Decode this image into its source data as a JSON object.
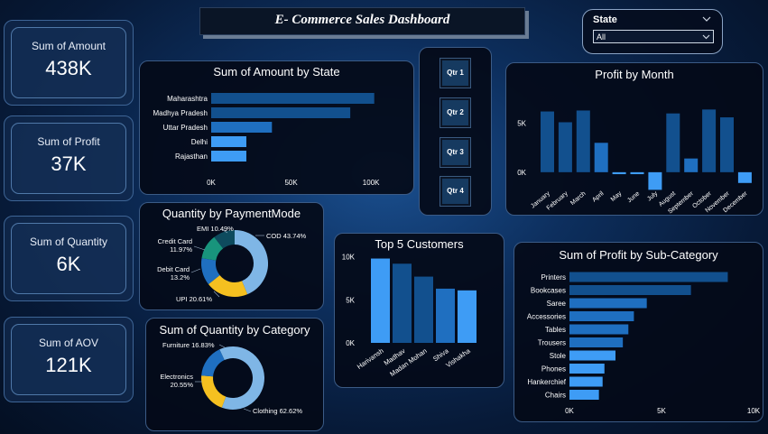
{
  "dashboard": {
    "title": "E- Commerce Sales Dashboard"
  },
  "slicer": {
    "label": "State",
    "value": "All"
  },
  "quarters": [
    "Qtr 1",
    "Qtr 2",
    "Qtr 3",
    "Qtr 4"
  ],
  "kpis": [
    {
      "label": "Sum of Amount",
      "value": "438K"
    },
    {
      "label": "Sum of Profit",
      "value": "37K"
    },
    {
      "label": "Sum of Quantity",
      "value": "6K"
    },
    {
      "label": "Sum of AOV",
      "value": "121K"
    }
  ],
  "colors": {
    "dark_blue": "#12508e",
    "mid_blue": "#1f6fc0",
    "light_blue": "#3e9cf5",
    "pale_blue": "#7fb6e6",
    "yellow": "#f5c020",
    "teal": "#18947c",
    "deep_teal": "#0e4b5e"
  },
  "chart_data": [
    {
      "id": "amount_by_state",
      "type": "bar",
      "orientation": "horizontal",
      "title": "Sum of Amount by State",
      "categories": [
        "Maharashtra",
        "Madhya Pradesh",
        "Uttar Pradesh",
        "Delhi",
        "Rajasthan"
      ],
      "values": [
        102000,
        87000,
        38000,
        22000,
        22000
      ],
      "xlim": [
        0,
        105000
      ],
      "xticks": [
        0,
        50000,
        100000
      ],
      "xtick_labels": [
        "0K",
        "50K",
        "100K"
      ]
    },
    {
      "id": "profit_by_month",
      "type": "bar",
      "title": "Profit by Month",
      "categories": [
        "January",
        "February",
        "March",
        "April",
        "May",
        "June",
        "July",
        "August",
        "September",
        "October",
        "November",
        "December"
      ],
      "values": [
        6200,
        5100,
        6300,
        3000,
        -200,
        -200,
        -1800,
        6000,
        1400,
        6400,
        5600,
        -1100
      ],
      "ylim": [
        -2500,
        8000
      ],
      "yticks": [
        0,
        5000
      ],
      "ytick_labels": [
        "0K",
        "5K"
      ]
    },
    {
      "id": "quantity_by_payment",
      "type": "pie",
      "donut": true,
      "title": "Quantity by PaymentMode",
      "labels": [
        "COD",
        "UPI",
        "Debit Card",
        "Credit Card",
        "EMI"
      ],
      "values": [
        43.74,
        20.61,
        13.2,
        11.97,
        10.49
      ],
      "display": [
        "COD 43.74%",
        "UPI 20.61%",
        "Debit Card 13.2%",
        "Credit Card 11.97%",
        "EMI 10.49%"
      ]
    },
    {
      "id": "top5_customers",
      "type": "bar",
      "title": "Top 5 Customers",
      "categories": [
        "Harivansh",
        "Madhav",
        "Madan Mohan",
        "Shiva",
        "Vishakha"
      ],
      "values": [
        9800,
        9200,
        7700,
        6300,
        6100
      ],
      "ylim": [
        0,
        10800
      ],
      "yticks": [
        0,
        5000,
        10000
      ],
      "ytick_labels": [
        "0K",
        "5K",
        "10K"
      ]
    },
    {
      "id": "quantity_by_category",
      "type": "pie",
      "donut": true,
      "title": "Sum of Quantity by Category",
      "labels": [
        "Clothing",
        "Electronics",
        "Furniture"
      ],
      "values": [
        62.62,
        20.55,
        16.83
      ],
      "display": [
        "Clothing 62.62%",
        "Electronics 20.55%",
        "Furniture 16.83%"
      ]
    },
    {
      "id": "profit_by_subcategory",
      "type": "bar",
      "orientation": "horizontal",
      "title": "Sum of Profit by Sub-Category",
      "categories": [
        "Printers",
        "Bookcases",
        "Saree",
        "Accessories",
        "Tables",
        "Trousers",
        "Stole",
        "Phones",
        "Hankerchief",
        "Chairs"
      ],
      "values": [
        8600,
        6600,
        4200,
        3500,
        3200,
        2900,
        2500,
        1900,
        1800,
        1600
      ],
      "xlim": [
        0,
        10000
      ],
      "xticks": [
        0,
        5000,
        10000
      ],
      "xtick_labels": [
        "0K",
        "5K",
        "10K"
      ]
    }
  ]
}
